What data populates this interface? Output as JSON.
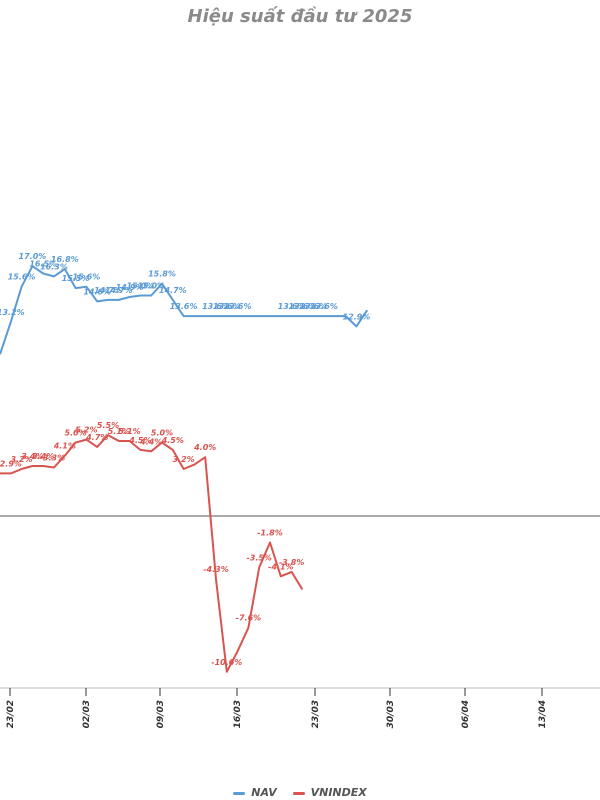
{
  "chart_data": {
    "type": "line",
    "title": "Hiệu suất đầu tư 2025",
    "xlabel": "",
    "ylabel": "",
    "ylim": [
      -13,
      20
    ],
    "grid": false,
    "legend_position": "bottom",
    "x_ticks": [
      "23/02",
      "02/03",
      "09/03",
      "16/03",
      "23/03",
      "30/03",
      "06/04",
      "13/04"
    ],
    "series": [
      {
        "name": "NAV",
        "color": "#5b9bd5",
        "values": [
          11.0,
          13.2,
          15.6,
          17.0,
          16.5,
          16.3,
          16.8,
          15.5,
          15.6,
          14.6,
          14.7,
          14.7,
          14.9,
          15.0,
          15.0,
          15.8,
          14.7,
          13.6,
          13.6,
          13.6,
          13.6,
          13.6,
          13.6,
          13.6,
          13.6,
          13.6,
          13.6,
          13.6,
          13.6,
          13.6,
          13.6,
          13.6,
          13.6,
          12.9,
          14.0
        ],
        "labels": [
          "",
          "13.2%",
          "15.6%",
          "17.0%",
          "16.5%",
          "16.3%",
          "16.8%",
          "15.5%",
          "15.6%",
          "14.6%",
          "14.7%",
          "14.7%",
          "14.9%",
          "15.0%",
          "15.0%",
          "15.8%",
          "14.7%",
          "13.6%",
          "",
          "",
          "13.6%",
          "13.6%",
          "13.6%",
          "",
          "",
          "",
          "",
          "13.6%",
          "13.6%",
          "13.6%",
          "13.6%",
          "",
          "",
          "12.9%",
          ""
        ]
      },
      {
        "name": "VNINDEX",
        "color": "#d9534f",
        "values": [
          2.9,
          2.9,
          3.2,
          3.4,
          3.4,
          3.3,
          4.1,
          5.0,
          5.2,
          4.7,
          5.5,
          5.1,
          5.1,
          4.5,
          4.4,
          5.0,
          4.5,
          3.2,
          3.5,
          4.0,
          -4.3,
          -10.6,
          -9.2,
          -7.6,
          -3.5,
          -1.8,
          -4.1,
          -3.8,
          -5.0
        ],
        "labels": [
          "2.9%",
          "2.9%",
          "3.2%",
          "3.4%",
          "3.4%",
          "3.3%",
          "4.1%",
          "5.0%",
          "5.2%",
          "4.7%",
          "5.5%",
          "5.1%",
          "5.1%",
          "4.5%",
          "4.4%",
          "5.0%",
          "4.5%",
          "3.2%",
          "",
          "4.0%",
          "-4.3%",
          "-10.6%",
          "",
          "-7.6%",
          "-3.5%",
          "-1.8%",
          "-4.1%",
          "-3.8%",
          ""
        ]
      }
    ]
  }
}
